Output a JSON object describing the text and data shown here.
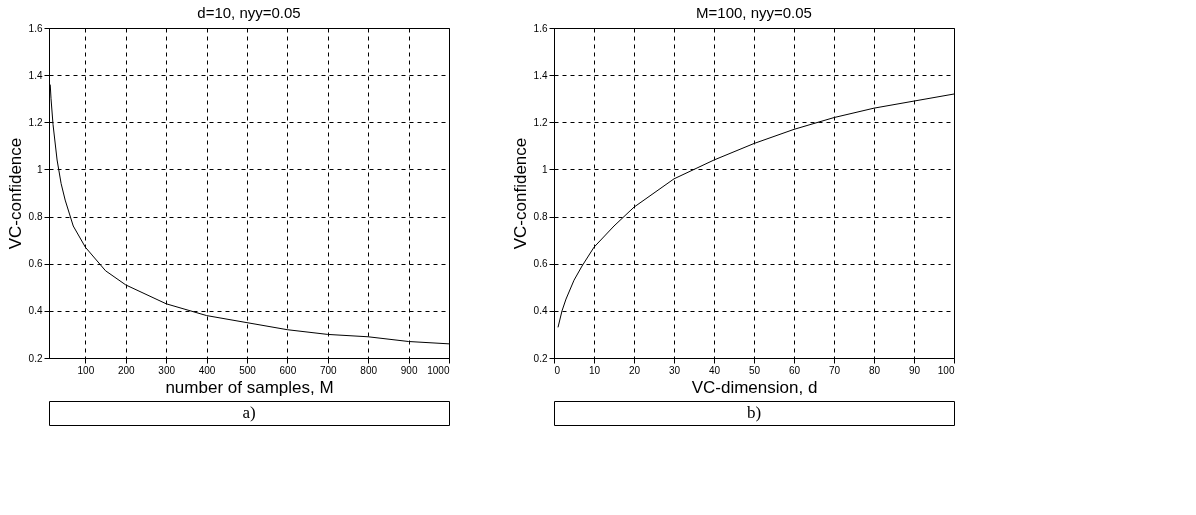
{
  "chart_data": [
    {
      "type": "line",
      "title": "d=10, nyy=0.05",
      "xlabel": "number of samples, M",
      "ylabel": "VC-confidence",
      "annotations": [
        "a)"
      ],
      "x": [
        13,
        15,
        20,
        30,
        40,
        50,
        70,
        100,
        150,
        200,
        300,
        400,
        500,
        600,
        700,
        800,
        900,
        1000
      ],
      "series": [
        {
          "color": "#000000",
          "values": [
            1.36,
            1.3,
            1.19,
            1.04,
            0.94,
            0.87,
            0.76,
            0.67,
            0.57,
            0.51,
            0.43,
            0.38,
            0.35,
            0.32,
            0.3,
            0.29,
            0.27,
            0.26
          ]
        }
      ],
      "xlim": [
        10,
        1000
      ],
      "xticks": [
        100,
        200,
        300,
        400,
        500,
        600,
        700,
        800,
        900,
        1000
      ],
      "ylim": [
        0.2,
        1.6
      ],
      "yticks": [
        0.2,
        0.4,
        0.6,
        0.8,
        1,
        1.2,
        1.4,
        1.6
      ],
      "grid": true,
      "marker": "none",
      "line_style": "solid"
    },
    {
      "type": "line",
      "title": "M=100, nyy=0.05",
      "xlabel": "VC-dimension, d",
      "ylabel": "VC-confidence",
      "annotations": [
        "b)"
      ],
      "x": [
        1,
        2,
        3,
        5,
        7,
        10,
        15,
        20,
        30,
        40,
        50,
        60,
        70,
        80,
        90,
        100
      ],
      "series": [
        {
          "color": "#000000",
          "values": [
            0.33,
            0.4,
            0.45,
            0.53,
            0.59,
            0.67,
            0.76,
            0.84,
            0.96,
            1.04,
            1.11,
            1.17,
            1.22,
            1.26,
            1.29,
            1.32
          ]
        }
      ],
      "xlim": [
        0,
        100
      ],
      "xticks": [
        0,
        10,
        20,
        30,
        40,
        50,
        60,
        70,
        80,
        90,
        100
      ],
      "ylim": [
        0.2,
        1.6
      ],
      "yticks": [
        0.2,
        0.4,
        0.6,
        0.8,
        1,
        1.2,
        1.4,
        1.6
      ],
      "grid": true,
      "marker": "none",
      "line_style": "solid"
    }
  ]
}
